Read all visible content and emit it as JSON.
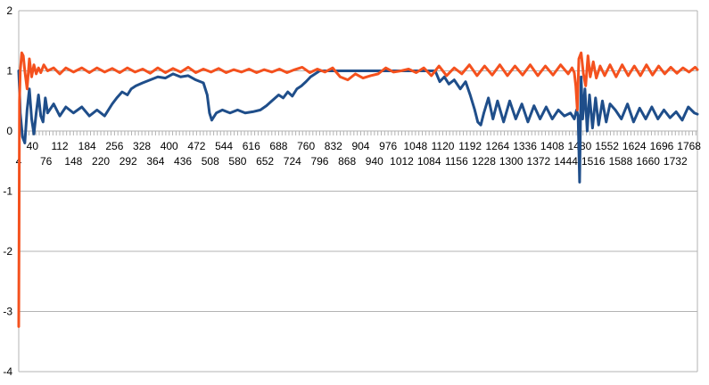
{
  "chart_data": {
    "type": "line",
    "title": "",
    "xlabel": "",
    "ylabel": "",
    "ylim": [
      -4,
      2
    ],
    "xlim": [
      4,
      1790
    ],
    "y_ticks": [
      "2",
      "1",
      "0",
      "-1",
      "-2",
      "-3",
      "-4"
    ],
    "y_tick_values": [
      2,
      1,
      0,
      -1,
      -2,
      -3,
      -4
    ],
    "x_tick_labels_upper": [
      "40",
      "112",
      "184",
      "256",
      "328",
      "400",
      "472",
      "544",
      "616",
      "688",
      "760",
      "832",
      "904",
      "976",
      "1048",
      "1120",
      "1192",
      "1264",
      "1336",
      "1408",
      "1480",
      "1552",
      "1624",
      "1696",
      "1768"
    ],
    "x_tick_labels_lower": [
      "4",
      "76",
      "148",
      "220",
      "292",
      "364",
      "436",
      "508",
      "580",
      "652",
      "724",
      "796",
      "868",
      "940",
      "1012",
      "1084",
      "1156",
      "1228",
      "1300",
      "1372",
      "1444",
      "1516",
      "1588",
      "1660",
      "1732"
    ],
    "grid": true,
    "legend": "none",
    "colors": {
      "series_blue": "#1f4e8a",
      "series_orange": "#f4511e",
      "grid": "#b3b3b3"
    },
    "series": [
      {
        "x": [
          4,
          6,
          8,
          14,
          20,
          26,
          32,
          38,
          44,
          50,
          56,
          62,
          68,
          74,
          80,
          96,
          112,
          128,
          148,
          170,
          190,
          210,
          230,
          250,
          262,
          276,
          290,
          300,
          312,
          330,
          350,
          370,
          390,
          410,
          430,
          450,
          470,
          490,
          500,
          506,
          512,
          524,
          540,
          560,
          580,
          600,
          620,
          640,
          656,
          670,
          688,
          700,
          712,
          724,
          736,
          748,
          760,
          772,
          784,
          796,
          850,
          920,
          990,
          1060,
          1100,
          1112,
          1124,
          1136,
          1150,
          1166,
          1180,
          1192,
          1204,
          1212,
          1220,
          1228,
          1240,
          1252,
          1264,
          1280,
          1296,
          1312,
          1328,
          1344,
          1360,
          1376,
          1392,
          1408,
          1424,
          1440,
          1456,
          1466,
          1472,
          1476,
          1480,
          1484,
          1488,
          1494,
          1500,
          1506,
          1514,
          1522,
          1530,
          1540,
          1550,
          1560,
          1574,
          1590,
          1606,
          1622,
          1638,
          1654,
          1670,
          1686,
          1702,
          1718,
          1734,
          1750,
          1766,
          1782,
          1790
        ],
        "y": [
          1.0,
          0.7,
          0.3,
          -0.1,
          -0.2,
          0.35,
          0.7,
          0.2,
          -0.05,
          0.3,
          0.6,
          0.25,
          0.15,
          0.55,
          0.3,
          0.45,
          0.25,
          0.4,
          0.3,
          0.4,
          0.25,
          0.35,
          0.25,
          0.45,
          0.55,
          0.65,
          0.6,
          0.7,
          0.75,
          0.8,
          0.85,
          0.9,
          0.88,
          0.95,
          0.9,
          0.92,
          0.85,
          0.8,
          0.6,
          0.3,
          0.18,
          0.3,
          0.35,
          0.3,
          0.35,
          0.3,
          0.32,
          0.35,
          0.42,
          0.5,
          0.6,
          0.55,
          0.65,
          0.58,
          0.7,
          0.75,
          0.82,
          0.9,
          0.95,
          1.0,
          1.0,
          1.0,
          1.0,
          1.0,
          1.0,
          0.82,
          0.9,
          0.78,
          0.85,
          0.7,
          0.82,
          0.6,
          0.35,
          0.15,
          0.1,
          0.3,
          0.55,
          0.2,
          0.5,
          0.15,
          0.5,
          0.2,
          0.45,
          0.15,
          0.42,
          0.2,
          0.4,
          0.2,
          0.35,
          0.25,
          0.3,
          0.2,
          0.35,
          0.25,
          -0.85,
          0.9,
          0.2,
          0.7,
          0.0,
          0.6,
          0.05,
          0.55,
          0.1,
          0.5,
          0.15,
          0.45,
          0.35,
          0.2,
          0.45,
          0.15,
          0.38,
          0.2,
          0.4,
          0.2,
          0.35,
          0.22,
          0.32,
          0.18,
          0.4,
          0.3,
          0.28
        ]
      },
      {
        "x": [
          4,
          5,
          6,
          8,
          12,
          16,
          20,
          26,
          32,
          38,
          44,
          50,
          56,
          62,
          70,
          80,
          96,
          112,
          128,
          148,
          170,
          190,
          210,
          230,
          250,
          270,
          290,
          310,
          330,
          350,
          370,
          390,
          410,
          430,
          450,
          470,
          490,
          510,
          530,
          550,
          570,
          590,
          610,
          630,
          650,
          670,
          690,
          710,
          730,
          750,
          770,
          790,
          810,
          830,
          850,
          870,
          890,
          910,
          930,
          950,
          970,
          990,
          1010,
          1030,
          1050,
          1070,
          1090,
          1110,
          1130,
          1150,
          1170,
          1190,
          1210,
          1230,
          1250,
          1270,
          1290,
          1310,
          1330,
          1350,
          1370,
          1390,
          1410,
          1430,
          1450,
          1460,
          1466,
          1470,
          1474,
          1478,
          1484,
          1490,
          1496,
          1502,
          1508,
          1516,
          1524,
          1534,
          1546,
          1560,
          1576,
          1592,
          1608,
          1624,
          1640,
          1656,
          1672,
          1688,
          1704,
          1720,
          1736,
          1752,
          1768,
          1784,
          1790
        ],
        "y": [
          -3.25,
          -1.5,
          0.5,
          1.0,
          1.3,
          1.25,
          1.0,
          0.7,
          1.2,
          0.9,
          1.1,
          0.95,
          1.05,
          0.97,
          1.1,
          1.0,
          1.05,
          0.95,
          1.05,
          0.98,
          1.05,
          0.97,
          1.05,
          0.98,
          1.04,
          0.97,
          1.05,
          0.98,
          1.03,
          0.96,
          1.05,
          0.97,
          1.04,
          0.98,
          1.06,
          0.97,
          1.03,
          0.98,
          1.04,
          0.97,
          1.02,
          0.98,
          1.03,
          0.97,
          1.02,
          0.98,
          1.03,
          0.97,
          1.02,
          1.06,
          0.97,
          1.03,
          0.98,
          1.05,
          0.9,
          0.85,
          0.95,
          0.88,
          0.92,
          0.95,
          1.05,
          0.98,
          1.0,
          1.03,
          0.97,
          1.05,
          0.92,
          1.08,
          0.92,
          1.05,
          0.95,
          1.1,
          0.92,
          1.08,
          0.93,
          1.1,
          0.92,
          1.08,
          0.93,
          1.1,
          0.92,
          1.08,
          0.93,
          1.1,
          0.95,
          1.05,
          0.97,
          0.75,
          0.35,
          1.2,
          1.3,
          0.95,
          0.75,
          1.25,
          0.9,
          1.15,
          0.88,
          1.08,
          0.92,
          1.1,
          0.9,
          1.1,
          0.92,
          1.08,
          0.92,
          1.1,
          0.93,
          1.08,
          0.95,
          1.06,
          0.96,
          1.05,
          0.98,
          1.06,
          1.02
        ]
      }
    ]
  }
}
